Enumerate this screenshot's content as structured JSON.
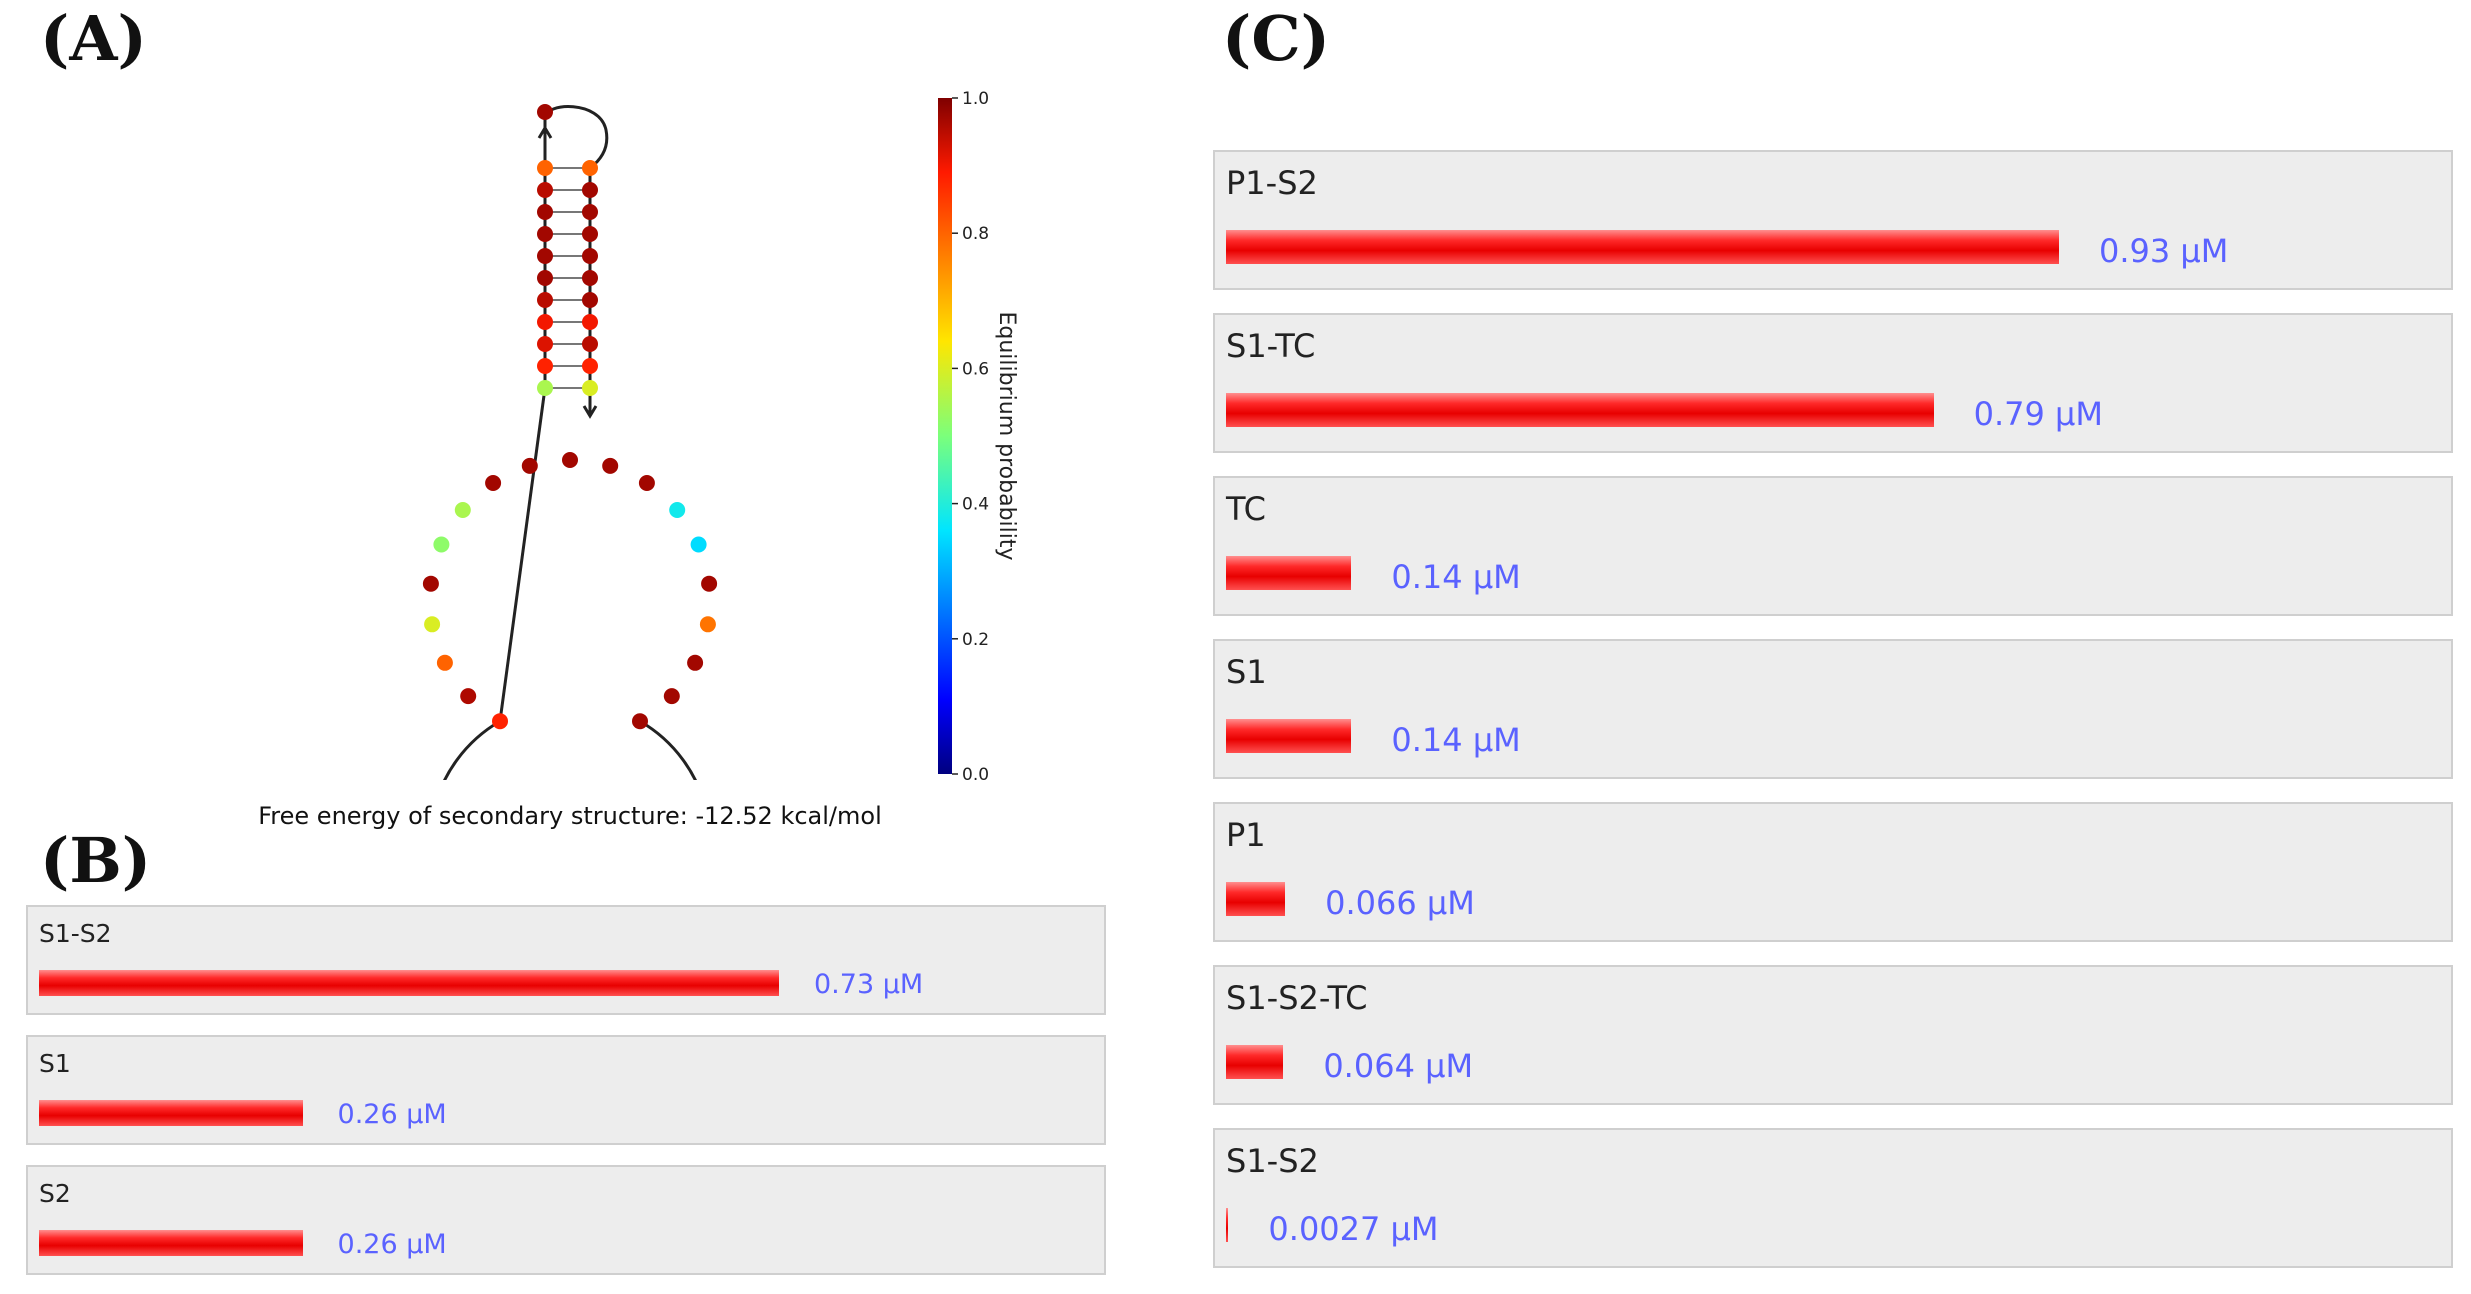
{
  "panels": {
    "a": "(A)",
    "b": "(B)",
    "c": "(C)"
  },
  "structure": {
    "free_energy_text": "Free energy of secondary structure: -12.52 kcal/mol",
    "colorbar": {
      "label": "Equilibrium probability",
      "ticks": [
        "1.0",
        "0.8",
        "0.6",
        "0.4",
        "0.2",
        "0.0"
      ]
    },
    "stem_left_probs": [
      0.8,
      0.95,
      0.97,
      0.97,
      0.97,
      0.97,
      0.95,
      0.9,
      0.92,
      0.88,
      0.55
    ],
    "stem_right_probs": [
      0.8,
      0.97,
      0.97,
      0.97,
      0.97,
      0.97,
      0.97,
      0.9,
      0.95,
      0.88,
      0.6
    ],
    "hairpin_top_prob": 0.97,
    "loop_probs": [
      0.88,
      0.96,
      0.8,
      0.6,
      0.97,
      0.52,
      0.55,
      0.97,
      0.97,
      0.97,
      0.97,
      0.97,
      0.38,
      0.35,
      0.97,
      0.78,
      0.97,
      0.97,
      0.97
    ]
  },
  "complexes_b": {
    "max_um": 0.73,
    "items": [
      {
        "name": "S1-S2",
        "value": 0.73,
        "label": "0.73 μM"
      },
      {
        "name": "S1",
        "value": 0.26,
        "label": "0.26 μM"
      },
      {
        "name": "S2",
        "value": 0.26,
        "label": "0.26 μM"
      }
    ]
  },
  "complexes_c": {
    "max_um": 0.93,
    "items": [
      {
        "name": "P1-S2",
        "value": 0.93,
        "label": "0.93 μM"
      },
      {
        "name": "S1-TC",
        "value": 0.79,
        "label": "0.79 μM"
      },
      {
        "name": "TC",
        "value": 0.14,
        "label": "0.14 μM"
      },
      {
        "name": "S1",
        "value": 0.14,
        "label": "0.14 μM"
      },
      {
        "name": "P1",
        "value": 0.066,
        "label": "0.066 μM"
      },
      {
        "name": "S1-S2-TC",
        "value": 0.064,
        "label": "0.064 μM"
      },
      {
        "name": "S1-S2",
        "value": 0.0027,
        "label": "0.0027 μM"
      }
    ]
  }
}
